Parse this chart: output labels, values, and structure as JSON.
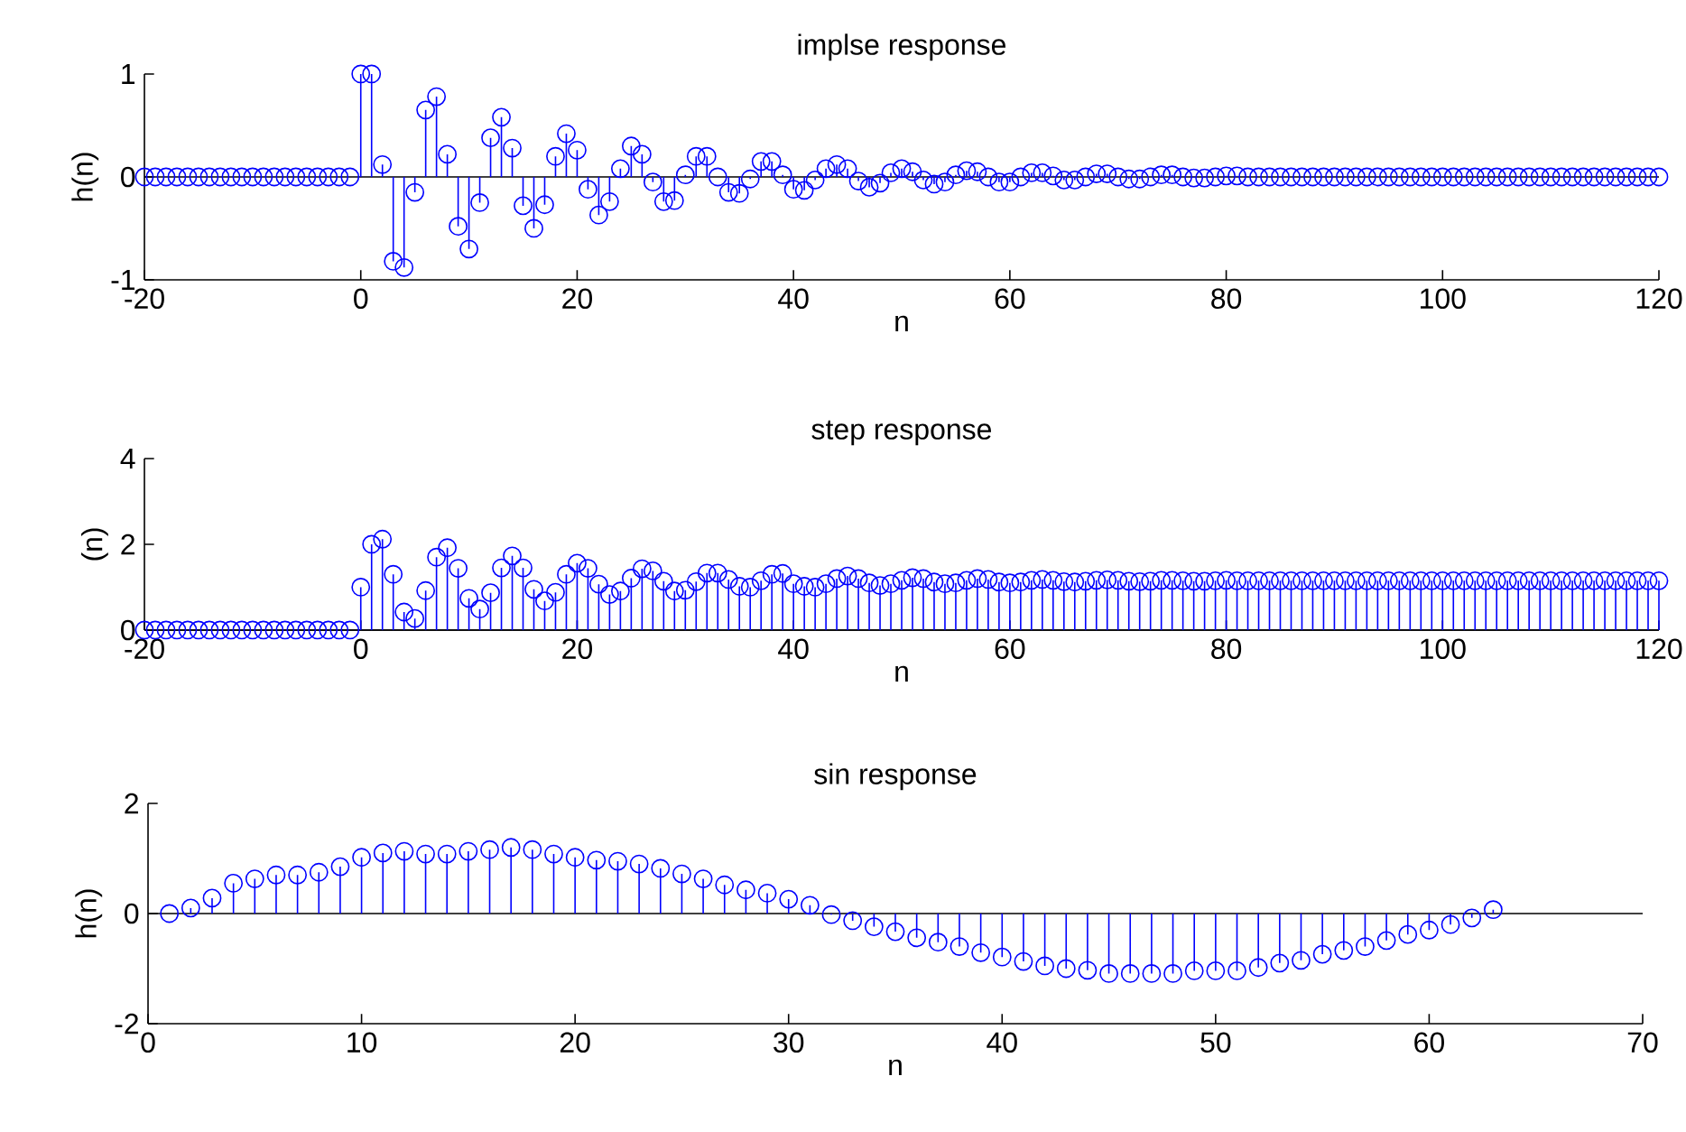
{
  "chart_data": [
    {
      "type": "lollipop",
      "title": "implse response",
      "xlabel": "n",
      "ylabel": "h(n)",
      "color": "#0000ff",
      "marker": "circle",
      "xlim": [
        -20,
        120
      ],
      "ylim": [
        -1,
        1
      ],
      "xticks": [
        -20,
        0,
        20,
        40,
        60,
        80,
        100,
        120
      ],
      "yticks": [
        -1,
        0,
        1
      ],
      "x": [
        -20,
        -19,
        -18,
        -17,
        -16,
        -15,
        -14,
        -13,
        -12,
        -11,
        -10,
        -9,
        -8,
        -7,
        -6,
        -5,
        -4,
        -3,
        -2,
        -1,
        0,
        1,
        2,
        3,
        4,
        5,
        6,
        7,
        8,
        9,
        10,
        11,
        12,
        13,
        14,
        15,
        16,
        17,
        18,
        19,
        20,
        21,
        22,
        23,
        24,
        25,
        26,
        27,
        28,
        29,
        30,
        31,
        32,
        33,
        34,
        35,
        36,
        37,
        38,
        39,
        40,
        41,
        42,
        43,
        44,
        45,
        46,
        47,
        48,
        49,
        50,
        51,
        52,
        53,
        54,
        55,
        56,
        57,
        58,
        59,
        60,
        61,
        62,
        63,
        64,
        65,
        66,
        67,
        68,
        69,
        70,
        71,
        72,
        73,
        74,
        75,
        76,
        77,
        78,
        79,
        80,
        81,
        82,
        83,
        84,
        85,
        86,
        87,
        88,
        89,
        90,
        91,
        92,
        93,
        94,
        95,
        96,
        97,
        98,
        99,
        100,
        101,
        102,
        103,
        104,
        105,
        106,
        107,
        108,
        109,
        110,
        111,
        112,
        113,
        114,
        115,
        116,
        117,
        118,
        119,
        120
      ],
      "values": [
        0,
        0,
        0,
        0,
        0,
        0,
        0,
        0,
        0,
        0,
        0,
        0,
        0,
        0,
        0,
        0,
        0,
        0,
        0,
        0,
        1.0,
        1.0,
        0.12,
        -0.82,
        -0.88,
        -0.15,
        0.65,
        0.78,
        0.22,
        -0.48,
        -0.7,
        -0.25,
        0.38,
        0.58,
        0.28,
        -0.28,
        -0.5,
        -0.27,
        0.2,
        0.42,
        0.26,
        -0.12,
        -0.37,
        -0.24,
        0.08,
        0.3,
        0.22,
        -0.05,
        -0.24,
        -0.23,
        0.02,
        0.2,
        0.2,
        0,
        -0.15,
        -0.16,
        -0.02,
        0.15,
        0.15,
        0.02,
        -0.12,
        -0.13,
        -0.03,
        0.08,
        0.12,
        0.08,
        -0.04,
        -0.1,
        -0.06,
        0.04,
        0.08,
        0.05,
        -0.03,
        -0.07,
        -0.05,
        0.02,
        0.06,
        0.05,
        0,
        -0.05,
        -0.05,
        0,
        0.04,
        0.04,
        0.01,
        -0.03,
        -0.03,
        0,
        0.03,
        0.03,
        0,
        -0.02,
        -0.02,
        0,
        0.02,
        0.02,
        0,
        -0.01,
        -0.01,
        0,
        0.01,
        0.01,
        0,
        0,
        0,
        0,
        0,
        0,
        0,
        0,
        0,
        0,
        0,
        0,
        0,
        0,
        0,
        0,
        0,
        0,
        0,
        0,
        0,
        0,
        0,
        0,
        0,
        0,
        0,
        0,
        0,
        0,
        0,
        0,
        0,
        0,
        0,
        0,
        0,
        0,
        0
      ]
    },
    {
      "type": "lollipop",
      "title": "step response",
      "xlabel": "n",
      "ylabel": "(n)",
      "color": "#0000ff",
      "marker": "circle",
      "xlim": [
        -20,
        120
      ],
      "ylim": [
        0,
        4
      ],
      "xticks": [
        -20,
        0,
        20,
        40,
        60,
        80,
        100,
        120
      ],
      "yticks": [
        0,
        2,
        4
      ],
      "x": [
        -20,
        -19,
        -18,
        -17,
        -16,
        -15,
        -14,
        -13,
        -12,
        -11,
        -10,
        -9,
        -8,
        -7,
        -6,
        -5,
        -4,
        -3,
        -2,
        -1,
        0,
        1,
        2,
        3,
        4,
        5,
        6,
        7,
        8,
        9,
        10,
        11,
        12,
        13,
        14,
        15,
        16,
        17,
        18,
        19,
        20,
        21,
        22,
        23,
        24,
        25,
        26,
        27,
        28,
        29,
        30,
        31,
        32,
        33,
        34,
        35,
        36,
        37,
        38,
        39,
        40,
        41,
        42,
        43,
        44,
        45,
        46,
        47,
        48,
        49,
        50,
        51,
        52,
        53,
        54,
        55,
        56,
        57,
        58,
        59,
        60,
        61,
        62,
        63,
        64,
        65,
        66,
        67,
        68,
        69,
        70,
        71,
        72,
        73,
        74,
        75,
        76,
        77,
        78,
        79,
        80,
        81,
        82,
        83,
        84,
        85,
        86,
        87,
        88,
        89,
        90,
        91,
        92,
        93,
        94,
        95,
        96,
        97,
        98,
        99,
        100,
        101,
        102,
        103,
        104,
        105,
        106,
        107,
        108,
        109,
        110,
        111,
        112,
        113,
        114,
        115,
        116,
        117,
        118,
        119,
        120
      ],
      "values": [
        0,
        0,
        0,
        0,
        0,
        0,
        0,
        0,
        0,
        0,
        0,
        0,
        0,
        0,
        0,
        0,
        0,
        0,
        0,
        0,
        1.0,
        2.0,
        2.12,
        1.3,
        0.42,
        0.27,
        0.92,
        1.7,
        1.92,
        1.44,
        0.74,
        0.49,
        0.87,
        1.45,
        1.73,
        1.45,
        0.95,
        0.68,
        0.88,
        1.3,
        1.56,
        1.44,
        1.07,
        0.83,
        0.91,
        1.21,
        1.43,
        1.38,
        1.14,
        0.91,
        0.93,
        1.13,
        1.33,
        1.33,
        1.18,
        1.02,
        1.0,
        1.15,
        1.3,
        1.32,
        1.08,
        1.02,
        1.0,
        1.08,
        1.2,
        1.26,
        1.2,
        1.1,
        1.04,
        1.08,
        1.16,
        1.22,
        1.2,
        1.12,
        1.08,
        1.1,
        1.16,
        1.2,
        1.18,
        1.12,
        1.1,
        1.12,
        1.16,
        1.18,
        1.16,
        1.13,
        1.12,
        1.14,
        1.16,
        1.17,
        1.16,
        1.14,
        1.13,
        1.14,
        1.16,
        1.16,
        1.15,
        1.14,
        1.14,
        1.15,
        1.16,
        1.15,
        1.15,
        1.15,
        1.15,
        1.15,
        1.15,
        1.15,
        1.15,
        1.15,
        1.15,
        1.15,
        1.15,
        1.15,
        1.15,
        1.15,
        1.15,
        1.15,
        1.15,
        1.15,
        1.15,
        1.15,
        1.15,
        1.15,
        1.15,
        1.15,
        1.15,
        1.15,
        1.15,
        1.15,
        1.15,
        1.15,
        1.15,
        1.15,
        1.15,
        1.15,
        1.15,
        1.15,
        1.15,
        1.15,
        1.15
      ]
    },
    {
      "type": "lollipop",
      "title": "sin response",
      "xlabel": "n",
      "ylabel": "h(n)",
      "color": "#0000ff",
      "marker": "circle",
      "xlim": [
        0,
        70
      ],
      "ylim": [
        -2,
        2
      ],
      "xticks": [
        0,
        10,
        20,
        30,
        40,
        50,
        60,
        70
      ],
      "yticks": [
        -2,
        0,
        2
      ],
      "x": [
        1,
        2,
        3,
        4,
        5,
        6,
        7,
        8,
        9,
        10,
        11,
        12,
        13,
        14,
        15,
        16,
        17,
        18,
        19,
        20,
        21,
        22,
        23,
        24,
        25,
        26,
        27,
        28,
        29,
        30,
        31,
        32,
        33,
        34,
        35,
        36,
        37,
        38,
        39,
        40,
        41,
        42,
        43,
        44,
        45,
        46,
        47,
        48,
        49,
        50,
        51,
        52,
        53,
        54,
        55,
        56,
        57,
        58,
        59,
        60,
        61,
        62,
        63
      ],
      "values": [
        0,
        0.1,
        0.28,
        0.55,
        0.63,
        0.7,
        0.7,
        0.75,
        0.85,
        1.02,
        1.1,
        1.13,
        1.08,
        1.08,
        1.13,
        1.16,
        1.2,
        1.16,
        1.08,
        1.02,
        0.97,
        0.95,
        0.9,
        0.82,
        0.72,
        0.63,
        0.52,
        0.43,
        0.37,
        0.26,
        0.15,
        -0.02,
        -0.13,
        -0.24,
        -0.33,
        -0.44,
        -0.52,
        -0.6,
        -0.71,
        -0.79,
        -0.87,
        -0.95,
        -1.0,
        -1.03,
        -1.09,
        -1.09,
        -1.09,
        -1.09,
        -1.04,
        -1.04,
        -1.04,
        -0.98,
        -0.9,
        -0.85,
        -0.74,
        -0.67,
        -0.6,
        -0.49,
        -0.38,
        -0.3,
        -0.2,
        -0.08,
        0.07
      ]
    }
  ]
}
